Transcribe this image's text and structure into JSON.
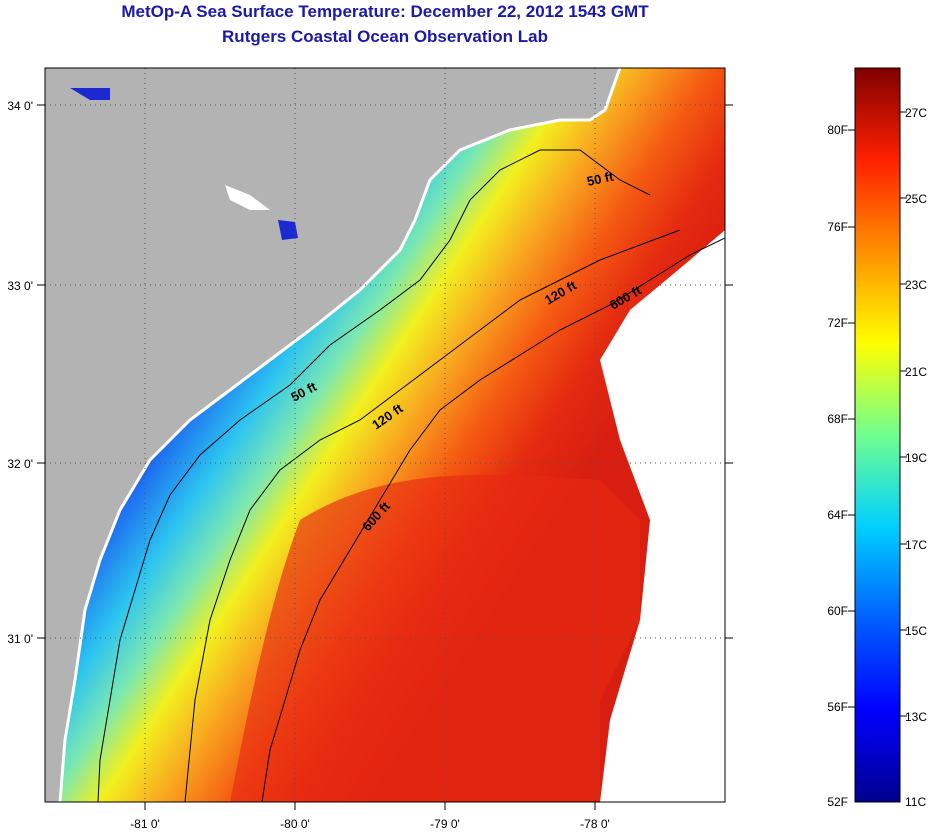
{
  "header": {
    "title": "MetOp-A Sea Surface Temperature:  December 22, 2012 1543 GMT",
    "subtitle": "Rutgers Coastal Ocean Observation Lab"
  },
  "map": {
    "lon_ticks": [
      "-81 0'",
      "-80 0'",
      "-79 0'",
      "-78 0'"
    ],
    "lat_ticks": [
      "34 0'",
      "33 0'",
      "32 0'",
      "31 0'"
    ],
    "contour_labels": [
      "50 ft",
      "50 ft",
      "120 ft",
      "120 ft",
      "600 ft",
      "600 ft"
    ]
  },
  "colorbar": {
    "fahrenheit_labels": [
      "80F",
      "76F",
      "72F",
      "68F",
      "64F",
      "60F",
      "56F",
      "52F"
    ],
    "celsius_labels": [
      "27C",
      "25C",
      "23C",
      "21C",
      "19C",
      "17C",
      "15C",
      "13C",
      "11C"
    ]
  },
  "colors": {
    "land": "#b3b3b3",
    "title": "#1a1aa8",
    "no_data": "#ffffff"
  }
}
